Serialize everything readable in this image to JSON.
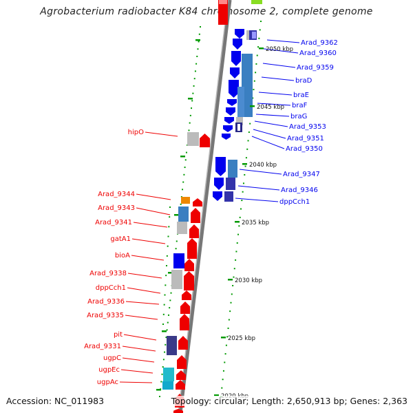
{
  "title": "Agrobacterium radiobacter K84 chromosome 2, complete genome",
  "footer": {
    "accession": "Accession: NC_011983",
    "topology": "Topology: circular; Length: 2,650,913 bp; Genes: 2,363"
  },
  "colors": {
    "plus": "#0000ee",
    "minus": "#ee0000",
    "tick": "#009900",
    "backbone": "#777777"
  },
  "kbp_ticks": [
    "2050 kbp",
    "2045 kbp",
    "2040 kbp",
    "2035 kbp",
    "2030 kbp",
    "2025 kbp",
    "2020 kbp"
  ],
  "genes_right": [
    "Arad_9362",
    "Arad_9360",
    "Arad_9359",
    "braD",
    "braE",
    "braF",
    "braG",
    "Arad_9353",
    "Arad_9351",
    "Arad_9350",
    "Arad_9347",
    "Arad_9346",
    "dppCch1"
  ],
  "genes_left": [
    "hipO",
    "Arad_9344",
    "Arad_9343",
    "Arad_9341",
    "gatA1",
    "bioA",
    "Arad_9338",
    "dppCch1",
    "Arad_9336",
    "Arad_9335",
    "pit",
    "Arad_9331",
    "ugpC",
    "ugpEc",
    "ugpAc"
  ]
}
